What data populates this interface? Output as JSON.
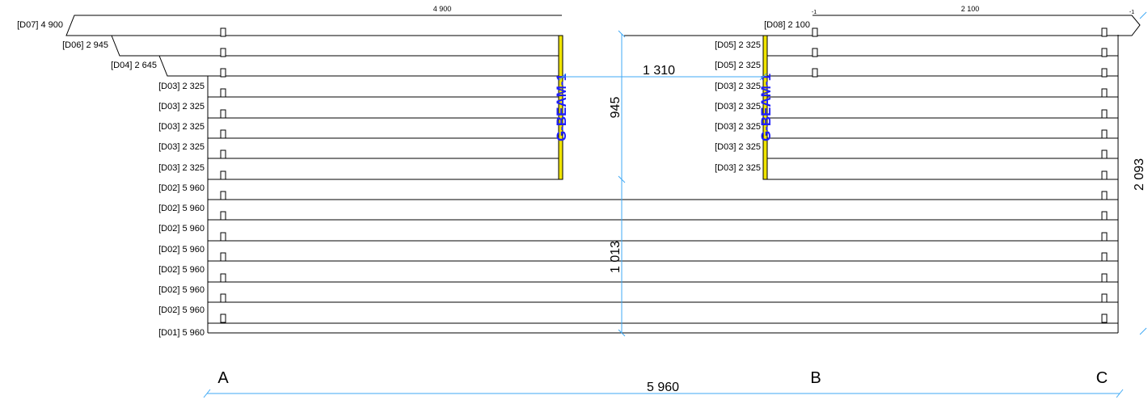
{
  "colors": {
    "outline": "#000000",
    "dimension": "#3fa9f5",
    "beam_fill": "#f0e500",
    "beam_text": "#1e1eff"
  },
  "logs": {
    "left": [
      {
        "label": "[D07] 4 900"
      },
      {
        "label": "[D06] 2 945"
      },
      {
        "label": "[D04] 2 645"
      },
      {
        "label": "[D03] 2 325"
      },
      {
        "label": "[D03] 2 325"
      },
      {
        "label": "[D03] 2 325"
      },
      {
        "label": "[D03] 2 325"
      },
      {
        "label": "[D03] 2 325"
      },
      {
        "label": "[D02] 5 960"
      },
      {
        "label": "[D02] 5 960"
      },
      {
        "label": "[D02] 5 960"
      },
      {
        "label": "[D02] 5 960"
      },
      {
        "label": "[D02] 5 960"
      },
      {
        "label": "[D02] 5 960"
      },
      {
        "label": "[D02] 5 960"
      },
      {
        "label": "[D01] 5 960"
      }
    ],
    "right": [
      {
        "label": "[D08] 2 100"
      },
      {
        "label": "[D05] 2 325"
      },
      {
        "label": "[D05] 2 325"
      },
      {
        "label": "[D03] 2 325"
      },
      {
        "label": "[D03] 2 325"
      },
      {
        "label": "[D03] 2 325"
      },
      {
        "label": "[D03] 2 325"
      },
      {
        "label": "[D03] 2 325"
      }
    ]
  },
  "dimensions": {
    "top_left": "4 900",
    "top_right": "2 100",
    "top_marker_a": "-1",
    "top_marker_b": "-1",
    "opening_width": "1 310",
    "opening_height": "945",
    "lower_height": "1 013",
    "wall_height": "2 093",
    "total_width": "5 960"
  },
  "beams": {
    "left": "G-BEAM-1",
    "right": "G-BEAM-1"
  },
  "grid_labels": {
    "a": "A",
    "b": "B",
    "c": "C"
  }
}
